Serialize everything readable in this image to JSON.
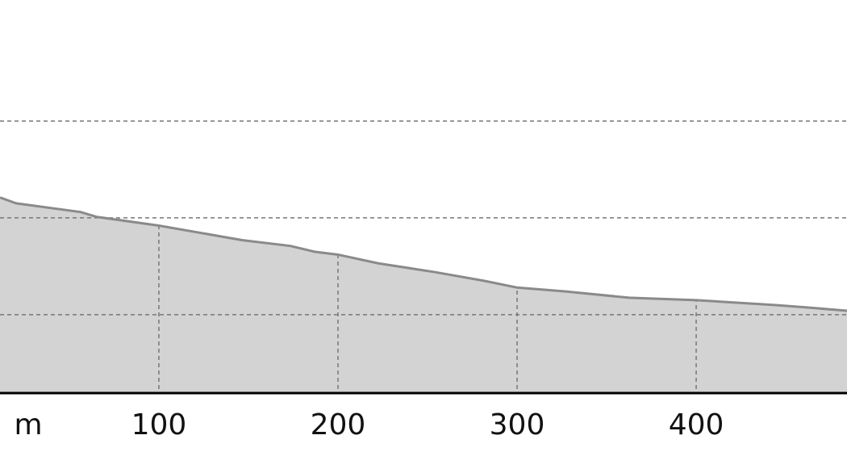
{
  "chart_data": {
    "type": "area",
    "x_label": "m",
    "x": [
      11.3,
      20.3,
      56.3,
      65.3,
      100,
      146.4,
      173.4,
      186.9,
      200,
      222.5,
      254,
      281.5,
      300,
      326.6,
      362.6,
      400,
      443.7,
      461.7,
      484.2
    ],
    "values": [
      32.1,
      31.5,
      30.6,
      30.1,
      29.2,
      27.7,
      27.1,
      26.5,
      26.2,
      25.3,
      24.4,
      23.5,
      22.8,
      22.4,
      21.75,
      21.5,
      21,
      20.75,
      20.4
    ],
    "color": "#d3d3d3",
    "line_color": "#8a8a8a",
    "xlim": [
      11.3,
      484.2
    ],
    "xticks": [
      100,
      200,
      300,
      400
    ],
    "ylim": [
      11.9,
      52.5
    ],
    "yticks": [
      20,
      30,
      40
    ],
    "grid": true
  }
}
